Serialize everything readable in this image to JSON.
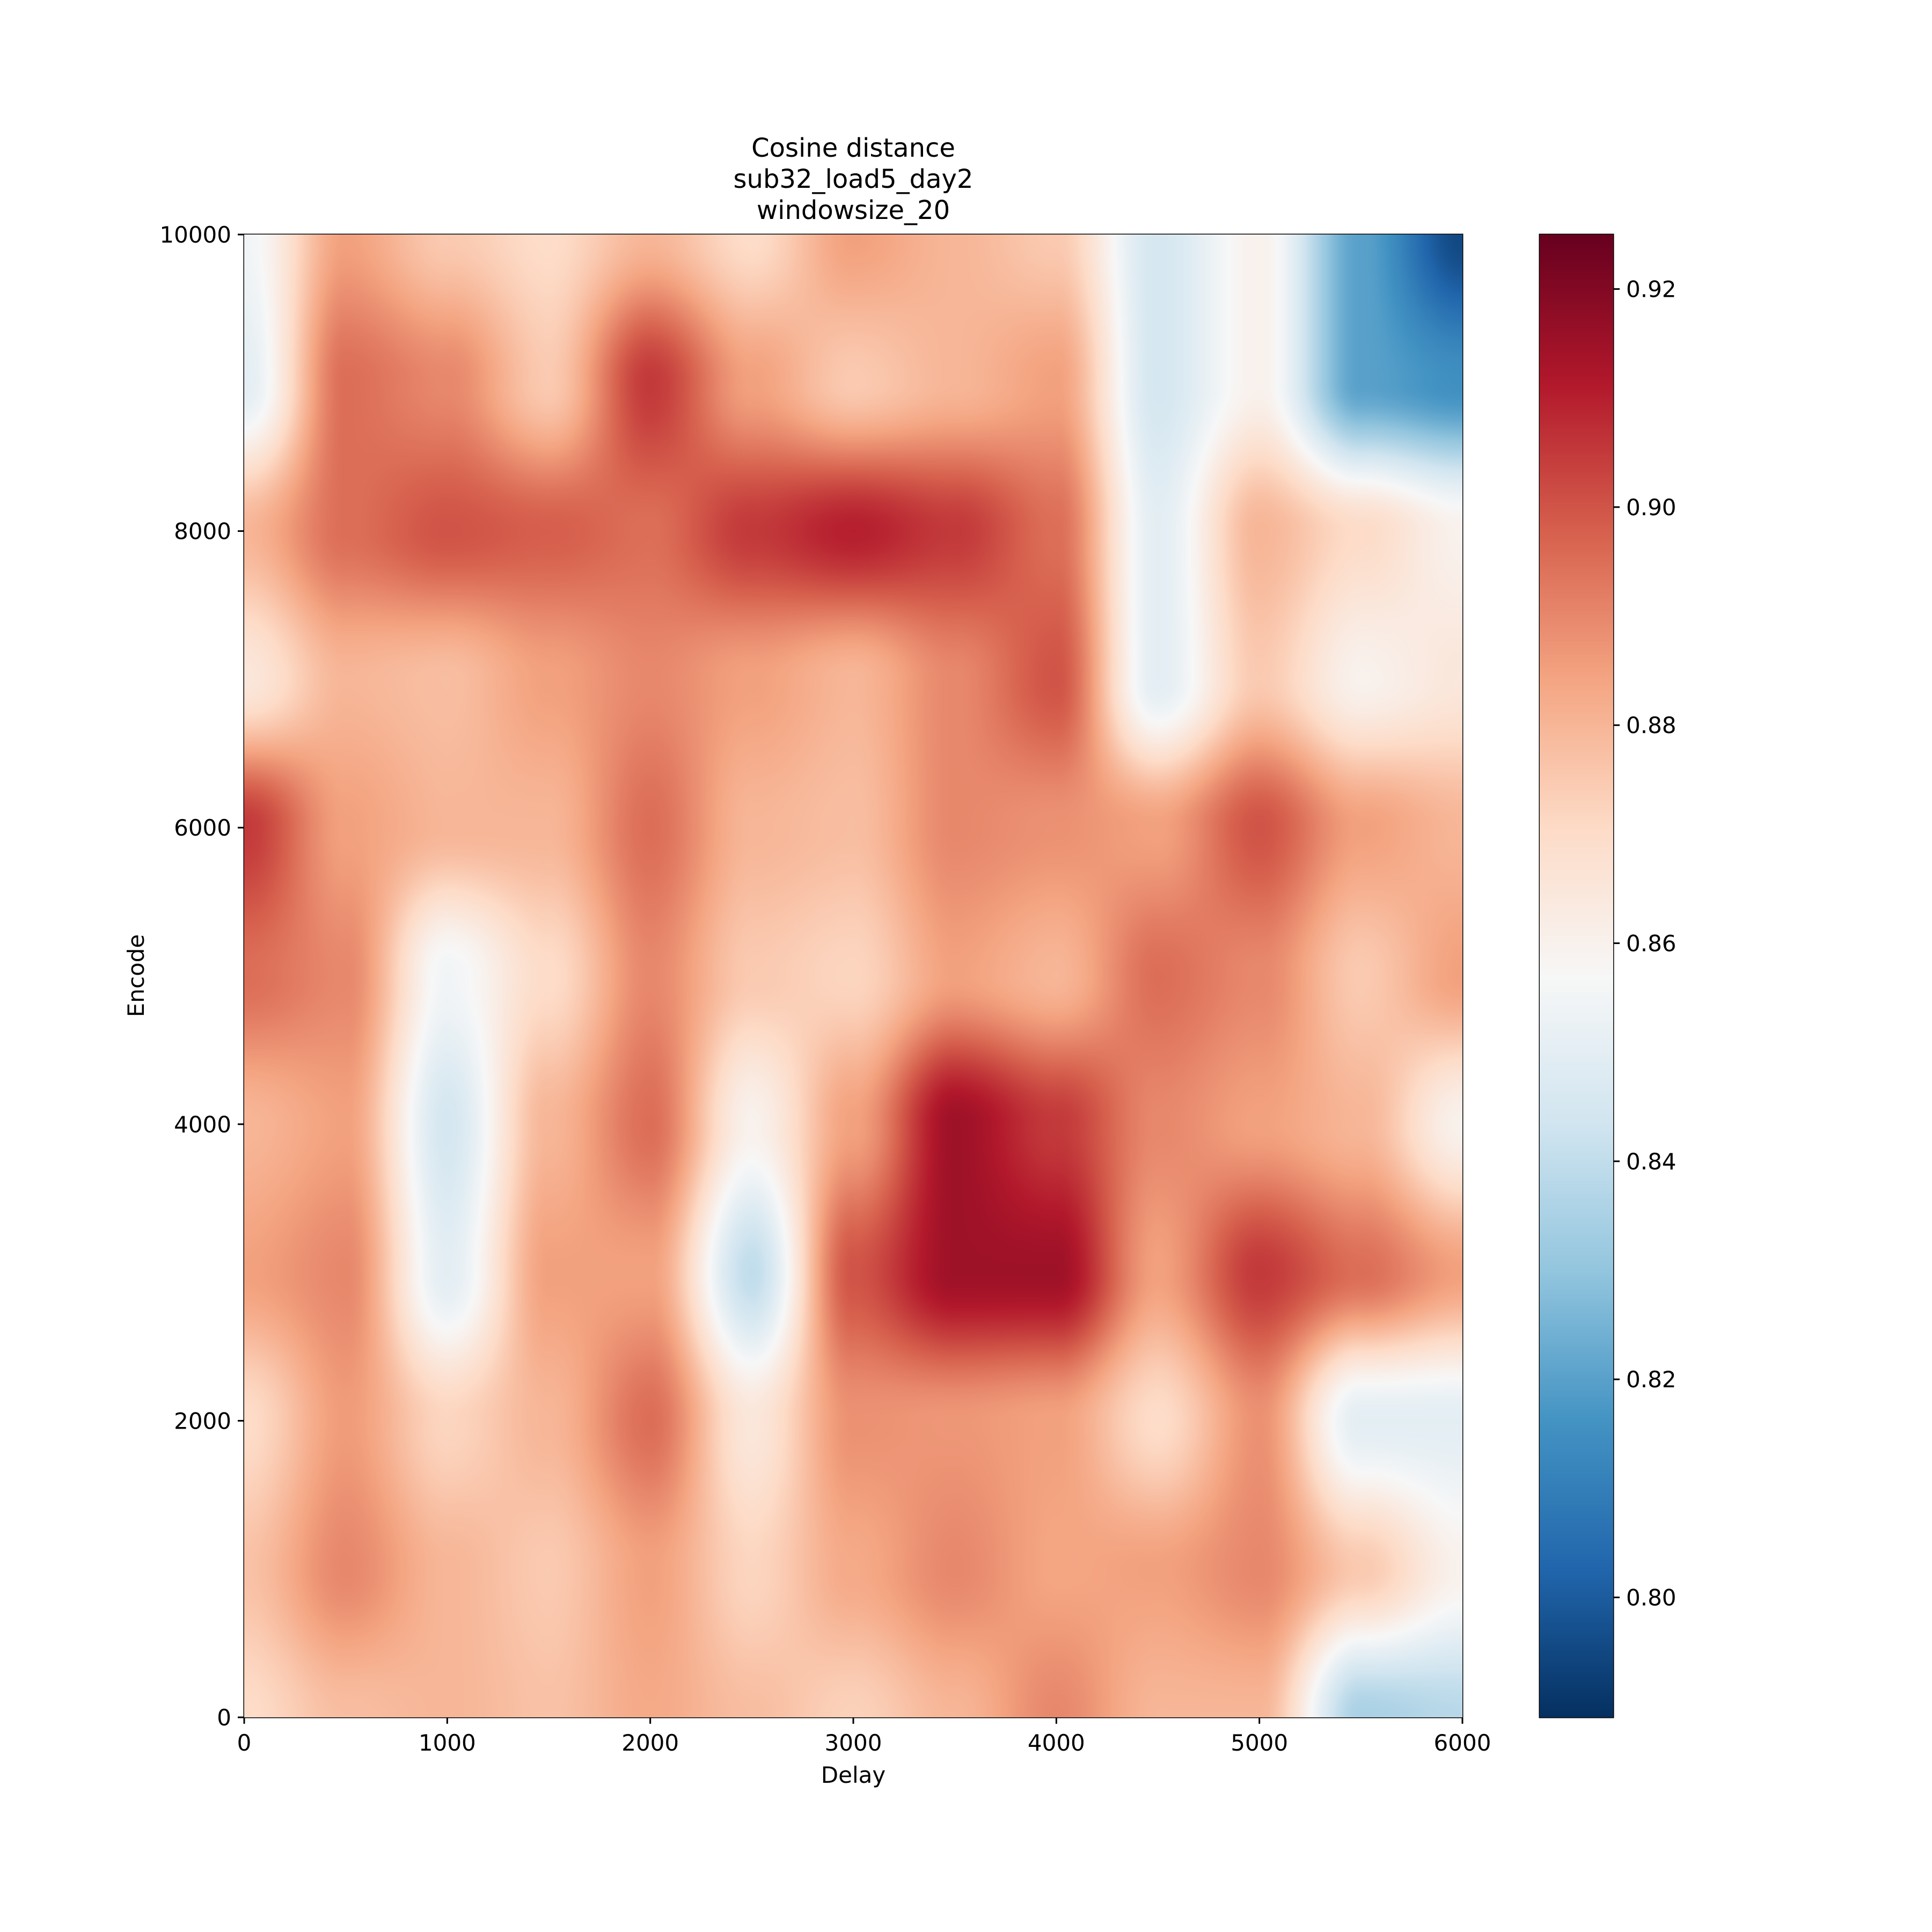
{
  "chart_data": {
    "type": "heatmap",
    "title_lines": [
      "Cosine distance",
      "sub32_load5_day2",
      "windowsize_20"
    ],
    "xlabel": "Delay",
    "ylabel": "Encode",
    "xlim": [
      0,
      6000
    ],
    "ylim": [
      0,
      10000
    ],
    "xticks": [
      0,
      1000,
      2000,
      3000,
      4000,
      5000,
      6000
    ],
    "yticks": [
      0,
      2000,
      4000,
      6000,
      8000,
      10000
    ],
    "hlines": [
      2000,
      4000,
      6000,
      8000
    ],
    "colormap": "RdBu_r",
    "clim": [
      0.789,
      0.925
    ],
    "colorbar_ticks": [
      0.8,
      0.82,
      0.84,
      0.86,
      0.88,
      0.9,
      0.92
    ],
    "colorbar_ticklabels": [
      "0.80",
      "0.82",
      "0.84",
      "0.86",
      "0.88",
      "0.90",
      "0.92"
    ],
    "grid_x": [
      0,
      500,
      1000,
      1500,
      2000,
      2500,
      3000,
      3500,
      4000,
      4500,
      5000,
      5500,
      6000
    ],
    "grid_y": [
      0,
      1000,
      2000,
      3000,
      4000,
      5000,
      6000,
      7000,
      8000,
      9000,
      10000
    ],
    "values": [
      [
        0.87,
        0.878,
        0.88,
        0.877,
        0.883,
        0.878,
        0.873,
        0.88,
        0.89,
        0.88,
        0.88,
        0.835,
        0.838
      ],
      [
        0.877,
        0.89,
        0.88,
        0.875,
        0.885,
        0.872,
        0.883,
        0.89,
        0.884,
        0.885,
        0.89,
        0.875,
        0.86
      ],
      [
        0.87,
        0.886,
        0.872,
        0.88,
        0.895,
        0.865,
        0.888,
        0.887,
        0.885,
        0.87,
        0.888,
        0.85,
        0.85
      ],
      [
        0.885,
        0.89,
        0.85,
        0.885,
        0.885,
        0.84,
        0.9,
        0.915,
        0.915,
        0.885,
        0.905,
        0.895,
        0.885
      ],
      [
        0.88,
        0.885,
        0.845,
        0.88,
        0.895,
        0.86,
        0.885,
        0.915,
        0.905,
        0.89,
        0.885,
        0.88,
        0.86
      ],
      [
        0.895,
        0.89,
        0.855,
        0.87,
        0.89,
        0.875,
        0.872,
        0.885,
        0.88,
        0.895,
        0.89,
        0.875,
        0.885
      ],
      [
        0.905,
        0.885,
        0.88,
        0.88,
        0.895,
        0.88,
        0.878,
        0.89,
        0.888,
        0.885,
        0.9,
        0.885,
        0.88
      ],
      [
        0.865,
        0.88,
        0.878,
        0.885,
        0.89,
        0.885,
        0.88,
        0.89,
        0.9,
        0.85,
        0.875,
        0.86,
        0.865
      ],
      [
        0.88,
        0.895,
        0.9,
        0.898,
        0.895,
        0.905,
        0.91,
        0.905,
        0.895,
        0.85,
        0.88,
        0.87,
        0.86
      ],
      [
        0.85,
        0.895,
        0.89,
        0.875,
        0.905,
        0.885,
        0.875,
        0.88,
        0.885,
        0.845,
        0.86,
        0.82,
        0.815
      ],
      [
        0.855,
        0.885,
        0.875,
        0.87,
        0.88,
        0.87,
        0.885,
        0.88,
        0.875,
        0.845,
        0.86,
        0.82,
        0.795
      ]
    ]
  }
}
